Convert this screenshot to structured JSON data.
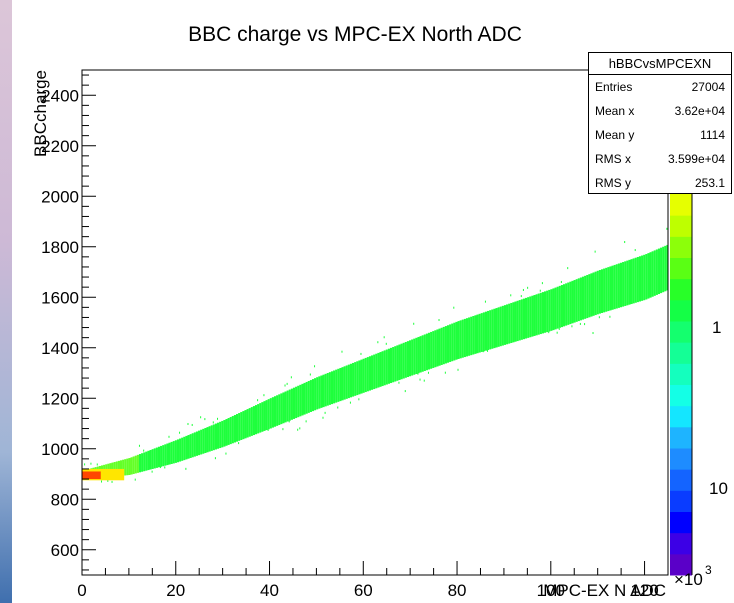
{
  "chart_data": {
    "type": "heatmap",
    "title": "BBC charge vs MPC-EX North ADC",
    "xlabel": "MPC-EX N ADC",
    "ylabel": "BBCcharge",
    "xlim": [
      0,
      125
    ],
    "ylim": [
      500,
      2500
    ],
    "x_ticks": [
      0,
      20,
      40,
      60,
      80,
      100,
      120
    ],
    "y_ticks": [
      600,
      800,
      1000,
      1200,
      1400,
      1600,
      1800,
      2000,
      2200,
      2400
    ],
    "z_scale": "log",
    "z_axis_labels": [
      "10",
      "1",
      "10",
      "×10"
    ],
    "z_axis_exponent": "3",
    "band": {
      "x": [
        0,
        10,
        20,
        30,
        40,
        50,
        60,
        70,
        80,
        90,
        100,
        110,
        120,
        125
      ],
      "y_center": [
        895,
        930,
        990,
        1060,
        1140,
        1220,
        1290,
        1360,
        1430,
        1490,
        1550,
        1620,
        1680,
        1720
      ],
      "y_halfwidth": [
        25,
        45,
        60,
        70,
        80,
        85,
        90,
        95,
        100,
        105,
        110,
        115,
        120,
        120
      ]
    },
    "hot_region": {
      "x": [
        0,
        4
      ],
      "y": [
        880,
        910
      ]
    },
    "stats": {
      "name": "hBBCvsMPCEXN",
      "rows": [
        {
          "label": "Entries",
          "value": "27004"
        },
        {
          "label": "Mean x",
          "value": "3.62e+04"
        },
        {
          "label": "Mean y",
          "value": "1114"
        },
        {
          "label": "RMS x",
          "value": "3.599e+04"
        },
        {
          "label": "RMS y",
          "value": "253.1"
        }
      ]
    },
    "palette": [
      "#5a00c8",
      "#3c00e6",
      "#0000ff",
      "#0a3cff",
      "#1464ff",
      "#1e8cff",
      "#1eb4ff",
      "#14e6ff",
      "#14ffe6",
      "#14ffbe",
      "#14ff96",
      "#14ff6e",
      "#14ff46",
      "#28ff28",
      "#5aff14",
      "#8cff0a",
      "#beff00",
      "#e6ff00"
    ],
    "colors": {
      "band": "#1eff3c",
      "band_dense": "#64ff28",
      "hot": "#ff4600",
      "warm": "#ffe600"
    }
  }
}
